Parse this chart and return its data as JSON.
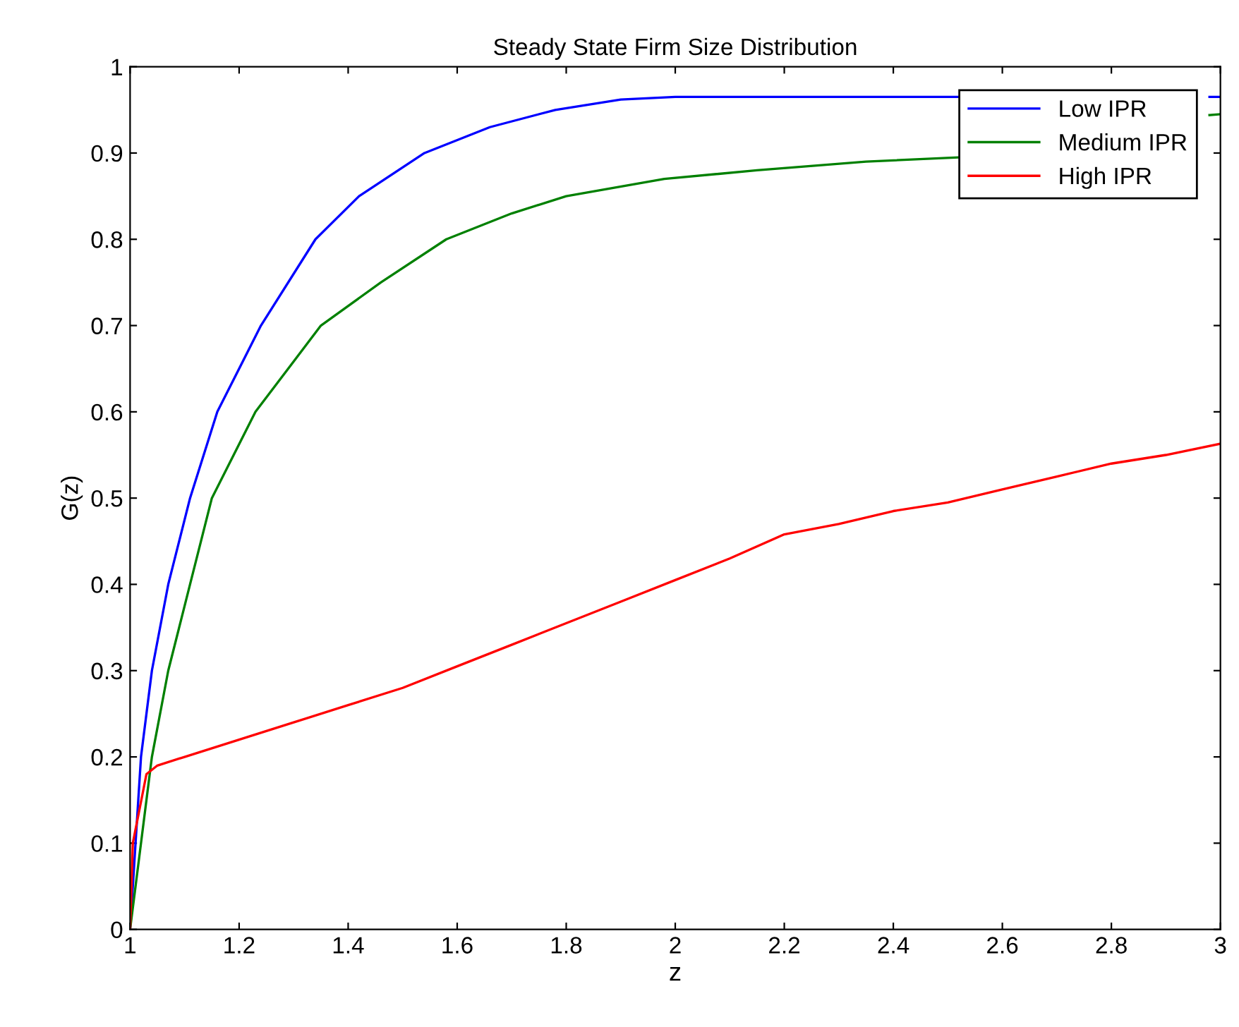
{
  "chart_data": {
    "type": "line",
    "title": "Steady State Firm Size Distribution",
    "xlabel": "z",
    "ylabel": "G(z)",
    "xlim": [
      1,
      3
    ],
    "ylim": [
      0,
      1
    ],
    "xticks": [
      1,
      1.2,
      1.4,
      1.6,
      1.8,
      2,
      2.2,
      2.4,
      2.6,
      2.8,
      3
    ],
    "yticks": [
      0,
      0.1,
      0.2,
      0.3,
      0.4,
      0.5,
      0.6,
      0.7,
      0.8,
      0.9,
      1
    ],
    "grid": false,
    "legend": "top right",
    "marker": "none",
    "line_style": "solid",
    "series": [
      {
        "name": "Low IPR",
        "color": "#0000ff",
        "x": [
          1,
          1.01,
          1.02,
          1.04,
          1.07,
          1.11,
          1.16,
          1.24,
          1.34,
          1.42,
          1.54,
          1.66,
          1.78,
          1.9,
          2.0,
          2.2,
          2.4,
          2.52,
          2.6,
          2.98,
          3.0
        ],
        "values": [
          0,
          0.1,
          0.2,
          0.3,
          0.4,
          0.5,
          0.6,
          0.7,
          0.8,
          0.85,
          0.9,
          0.93,
          0.95,
          0.962,
          0.965,
          0.965,
          0.965,
          0.965,
          null,
          0.965,
          0.965
        ]
      },
      {
        "name": "Medium IPR",
        "color": "#008000",
        "x": [
          1,
          1.02,
          1.04,
          1.07,
          1.11,
          1.15,
          1.23,
          1.35,
          1.46,
          1.58,
          1.7,
          1.8,
          1.98,
          2.15,
          2.35,
          2.52,
          2.6,
          2.98,
          3.0
        ],
        "values": [
          0,
          0.1,
          0.2,
          0.3,
          0.4,
          0.5,
          0.6,
          0.7,
          0.75,
          0.8,
          0.83,
          0.85,
          0.87,
          0.88,
          0.89,
          0.895,
          null,
          0.944,
          0.945
        ]
      },
      {
        "name": "High IPR",
        "color": "#ff0000",
        "x": [
          1,
          1.005,
          1.03,
          1.05,
          1.1,
          1.2,
          1.3,
          1.4,
          1.5,
          1.6,
          1.7,
          1.8,
          1.9,
          2.0,
          2.1,
          2.2,
          2.3,
          2.4,
          2.5,
          2.6,
          2.7,
          2.8,
          2.9,
          3.0
        ],
        "values": [
          0,
          0.1,
          0.18,
          0.19,
          0.2,
          0.22,
          0.24,
          0.26,
          0.28,
          0.305,
          0.33,
          0.355,
          0.38,
          0.405,
          0.43,
          0.458,
          0.47,
          0.485,
          0.495,
          0.51,
          0.525,
          0.54,
          0.55,
          0.563
        ]
      }
    ]
  }
}
